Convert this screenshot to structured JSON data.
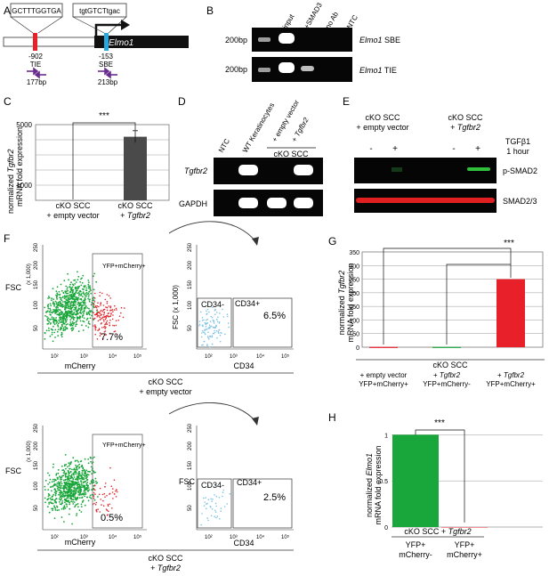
{
  "panels": {
    "A": {
      "letter": "A",
      "seq_left": "GCTTTGGTGA",
      "seq_right": "tgtGTCTtgac",
      "gene": "Elmo1",
      "site_left_pos": "-902",
      "site_left_name": "TIE",
      "site_right_pos": "-153",
      "site_right_name": "SBE",
      "amp_left": "177bp",
      "amp_right": "213bp",
      "colors": {
        "tie": "#e8202a",
        "sbe": "#29a8e0",
        "primer": "#6b2c8f"
      }
    },
    "B": {
      "letter": "B",
      "lanes": [
        "input",
        "+SMAD3",
        "no Ab",
        "NTC"
      ],
      "row1_size": "200bp",
      "row1_label_gene": "Elmo1",
      "row1_label_site": "SBE",
      "row2_size": "200bp",
      "row2_label_gene": "Elmo1",
      "row2_label_site": "TIE"
    },
    "C": {
      "letter": "C",
      "ylabel_line1": "normalized",
      "ylabel_gene": "Tgfbr2",
      "ylabel_line2": "mRNA fold expression",
      "ylabel_line3": "mRNA fold expression",
      "significance": "***",
      "cat1_l1": "cKO SCC",
      "cat1_l2": "+ empty vector",
      "cat2_l1": "cKO SCC",
      "cat2_l2": "+",
      "cat2_gene": "Tgfbr2"
    },
    "D": {
      "letter": "D",
      "lanes": [
        "NTC",
        "WT Keratinocytes",
        "+ empty vector"
      ],
      "lane4_prefix": "+",
      "lane4_gene": "Tgfbr2",
      "group_label": "cKO SCC",
      "row1": "Tgfbr2",
      "row2": "GAPDH"
    },
    "E": {
      "letter": "E",
      "group1_l1": "cKO SCC",
      "group1_l2": "+ empty vector",
      "group2_l1": "cKO SCC",
      "group2_l2": "+",
      "group2_gene": "Tgfbr2",
      "treatment_l1": "TGFβ1",
      "treatment_l2": "1 hour",
      "signs": [
        "-",
        "+",
        "-",
        "+"
      ],
      "row1": "p-SMAD2",
      "row2": "SMAD2/3"
    },
    "F": {
      "letter": "F",
      "top": {
        "fsc": "FSC",
        "scale": "(x 1,000)",
        "yticks": [
          "50",
          "100",
          "150",
          "200",
          "250"
        ],
        "gate_label": "YFP+mCherry+",
        "xlabel": "mCherry",
        "pct_main": "7.7%",
        "sub_fsc": "FSC (x 1,000)",
        "sub_yticks": [
          "50",
          "100",
          "150",
          "200",
          "250"
        ],
        "cd34neg": "CD34-",
        "cd34pos": "CD34+",
        "pct_cd34": "6.5%",
        "sub_xlabel": "CD34",
        "caption_l1": "cKO SCC",
        "caption_l2": "+ empty vector"
      },
      "bottom": {
        "fsc": "FSC",
        "scale": "(x 1,000)",
        "yticks": [
          "50",
          "100",
          "150",
          "200",
          "250"
        ],
        "gate_label": "YFP+mCherry+",
        "xlabel": "mCherry",
        "pct_main": "0.5%",
        "sub_fsc": "FSC",
        "sub_yticks": [
          "50",
          "100",
          "150",
          "200",
          "250"
        ],
        "cd34neg": "CD34-",
        "cd34pos": "CD34+",
        "pct_cd34": "2.5%",
        "sub_xlabel": "CD34",
        "caption_l1": "cKO SCC",
        "caption_l2_prefix": "+",
        "caption_l2_gene": "Tgfbr2"
      },
      "xticks": [
        "10²",
        "10³",
        "10⁴",
        "10⁵"
      ],
      "colors": {
        "green": "#19a63a",
        "red": "#e0282e",
        "blue": "#7ec3e6"
      }
    },
    "G": {
      "letter": "G",
      "ylabel_l1": "normalized",
      "ylabel_gene": "Tgfbr2",
      "ylabel_l2": "mRNA fold expression",
      "significance": "***",
      "group_label": "cKO SCC",
      "cat1_l1": "+ empty vector",
      "cat1_l2": "YFP+mCherry+",
      "cat2_l1_prefix": "+",
      "cat2_l1_gene": "Tgfbr2",
      "cat2_l2": "YFP+mCherry-",
      "cat3_l1_prefix": "+",
      "cat3_l1_gene": "Tgfbr2",
      "cat3_l2": "YFP+mCherry+"
    },
    "H": {
      "letter": "H",
      "ylabel_l1": "normalized",
      "ylabel_gene": "Elmo1",
      "ylabel_l2": "mRNA fold expression",
      "significance": "***",
      "group_label_prefix": "cKO SCC +",
      "group_label_gene": "Tgfbr2",
      "cat1_l1": "YFP+",
      "cat1_l2": "mCherry-",
      "cat2_l1": "YFP+",
      "cat2_l2": "mCherry+"
    }
  },
  "chart_data": [
    {
      "type": "bar",
      "panel": "C",
      "categories": [
        "cKO SCC + empty vector",
        "cKO SCC + Tgfbr2"
      ],
      "values": [
        1,
        4200
      ],
      "error": [
        0,
        400
      ],
      "yticks": [
        1000,
        5000
      ],
      "ylim": [
        0,
        5000
      ],
      "ylabel": "normalized Tgfbr2 mRNA fold expression",
      "bar_color": "#4a4a4a",
      "grid": true
    },
    {
      "type": "bar",
      "panel": "G",
      "categories": [
        "+ empty vector YFP+mCherry+",
        "+ Tgfbr2 YFP+mCherry-",
        "+ Tgfbr2 YFP+mCherry+"
      ],
      "values": [
        1,
        1,
        250
      ],
      "colors": [
        "#e8202a",
        "#19a63a",
        "#e8202a"
      ],
      "yticks": [
        0,
        50,
        100,
        150,
        200,
        250,
        300,
        350
      ],
      "ylim": [
        0,
        350
      ],
      "ylabel": "normalized Tgfbr2 mRNA fold expression",
      "grid": true
    },
    {
      "type": "bar",
      "panel": "H",
      "categories": [
        "YFP+ mCherry-",
        "YFP+ mCherry+"
      ],
      "values": [
        1,
        0
      ],
      "colors": [
        "#19a63a",
        "#e8202a"
      ],
      "yticks": [
        0,
        0.5,
        1
      ],
      "ylim": [
        0,
        1.1
      ],
      "ylabel": "normalized Elmo1 mRNA fold expression",
      "grid": true
    }
  ]
}
